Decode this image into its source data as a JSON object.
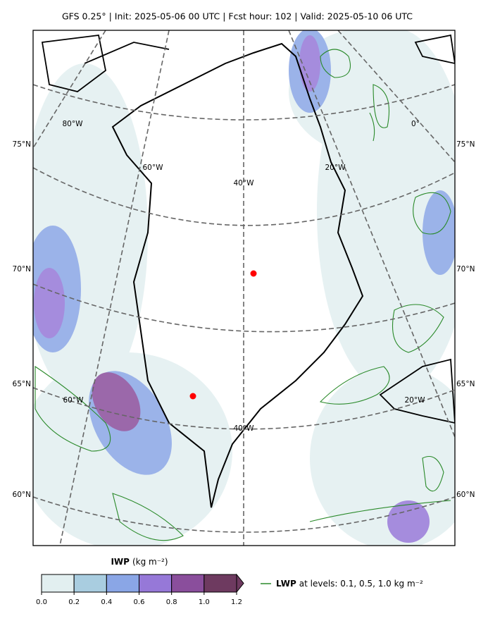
{
  "title": "GFS 0.25° | Init: 2025-05-06 00 UTC | Fcst hour: 102 | Valid: 2025-05-10 06 UTC",
  "lat_labels_left": [
    "75°N",
    "70°N",
    "65°N",
    "60°N"
  ],
  "lat_labels_right": [
    "75°N",
    "70°N",
    "65°N",
    "60°N"
  ],
  "lon_labels": [
    "80°W",
    "60°W",
    "40°W",
    "20°W",
    "0°",
    "60°W",
    "40°W",
    "20°W"
  ],
  "colorbar": {
    "label": "IWP",
    "unit": "(kg m⁻²)",
    "colors": [
      "#e2eff0",
      "#a9cde0",
      "#8aa6e6",
      "#9678d8",
      "#8a4e9c",
      "#6e3a60"
    ],
    "ticks": [
      {
        "value": 0,
        "label": "0.0"
      },
      {
        "value": 0.2,
        "label": "0.2"
      },
      {
        "value": 0.4,
        "label": "0.4"
      },
      {
        "value": 0.6,
        "label": "0.6"
      },
      {
        "value": 0.8,
        "label": "0.8"
      },
      {
        "value": 1.0,
        "label": "1.0"
      },
      {
        "value": 1.2,
        "label": "1.2"
      }
    ],
    "lim": [
      0,
      1.2
    ]
  },
  "legend": {
    "name": "LWP",
    "text": "at levels: 0.1, 0.5, 1.0  kg m⁻²",
    "color": "#2a8a2a"
  }
}
